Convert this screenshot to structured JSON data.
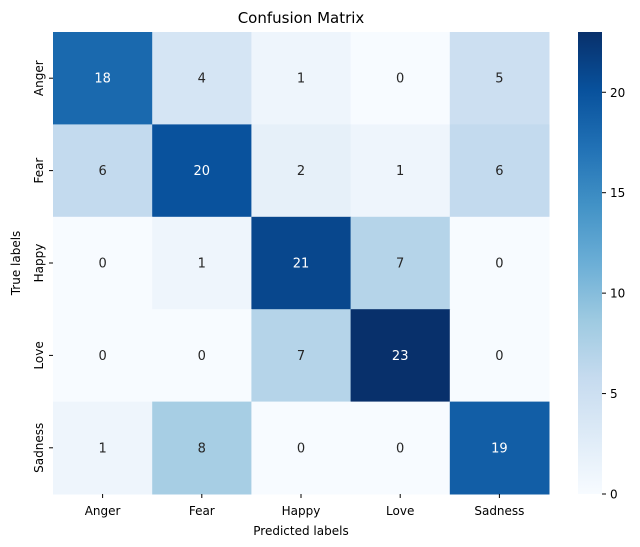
{
  "chart_data": {
    "type": "heatmap",
    "title": "Confusion Matrix",
    "xlabel": "Predicted labels",
    "ylabel": "True labels",
    "x_categories": [
      "Anger",
      "Fear",
      "Happy",
      "Love",
      "Sadness"
    ],
    "y_categories": [
      "Anger",
      "Fear",
      "Happy",
      "Love",
      "Sadness"
    ],
    "values": [
      [
        18,
        4,
        1,
        0,
        5
      ],
      [
        6,
        20,
        2,
        1,
        6
      ],
      [
        0,
        1,
        21,
        7,
        0
      ],
      [
        0,
        0,
        7,
        23,
        0
      ],
      [
        1,
        8,
        0,
        0,
        19
      ]
    ],
    "colorbar": {
      "range": [
        0,
        23
      ],
      "ticks": [
        "0",
        "5",
        "10",
        "15",
        "20"
      ],
      "colormap": "Blues"
    },
    "annotations": "cell values"
  }
}
